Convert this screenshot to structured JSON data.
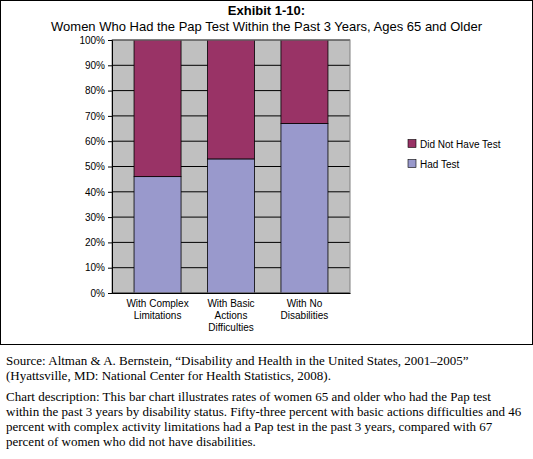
{
  "chart_data": {
    "type": "bar",
    "title": "Exhibit 1-10:",
    "subtitle": "Women Who Had the Pap Test Within the Past 3 Years, Ages 65 and Older",
    "categories": [
      "With Complex\nLimitations",
      "With Basic\nActions\nDifficulties",
      "With No\nDisabilities"
    ],
    "series": [
      {
        "name": "Had Test",
        "color": "#9999cc",
        "values": [
          46,
          53,
          67
        ]
      },
      {
        "name": "Did Not Have Test",
        "color": "#993366",
        "values": [
          54,
          47,
          33
        ]
      }
    ],
    "stacked": true,
    "ylim": [
      0,
      100
    ],
    "yticks": [
      {
        "value": 0,
        "label": "0%"
      },
      {
        "value": 10,
        "label": "10%"
      },
      {
        "value": 20,
        "label": "20%"
      },
      {
        "value": 30,
        "label": "30%"
      },
      {
        "value": 40,
        "label": "40%"
      },
      {
        "value": 50,
        "label": "50%"
      },
      {
        "value": 60,
        "label": "60%"
      },
      {
        "value": 70,
        "label": "70%"
      },
      {
        "value": 80,
        "label": "80%"
      },
      {
        "value": 90,
        "label": "90%"
      },
      {
        "value": 100,
        "label": "100%"
      }
    ],
    "grid": true,
    "legend": "right",
    "annotations": [
      "Source: Altman & A. Bernstein, “Disability and Health in the United States, 2001–2005” (Hyattsville, MD: National Center for Health Statistics, 2008).",
      "Chart description: This bar chart illustrates rates of women 65 and older who had the Pap test within the past 3 years by disability status. Fifty-three percent with basic actions difficulties and 46 percent with complex activity limitations had a Pap test in the past 3 years, compared with 67 percent of women who did not have disabilities."
    ]
  }
}
